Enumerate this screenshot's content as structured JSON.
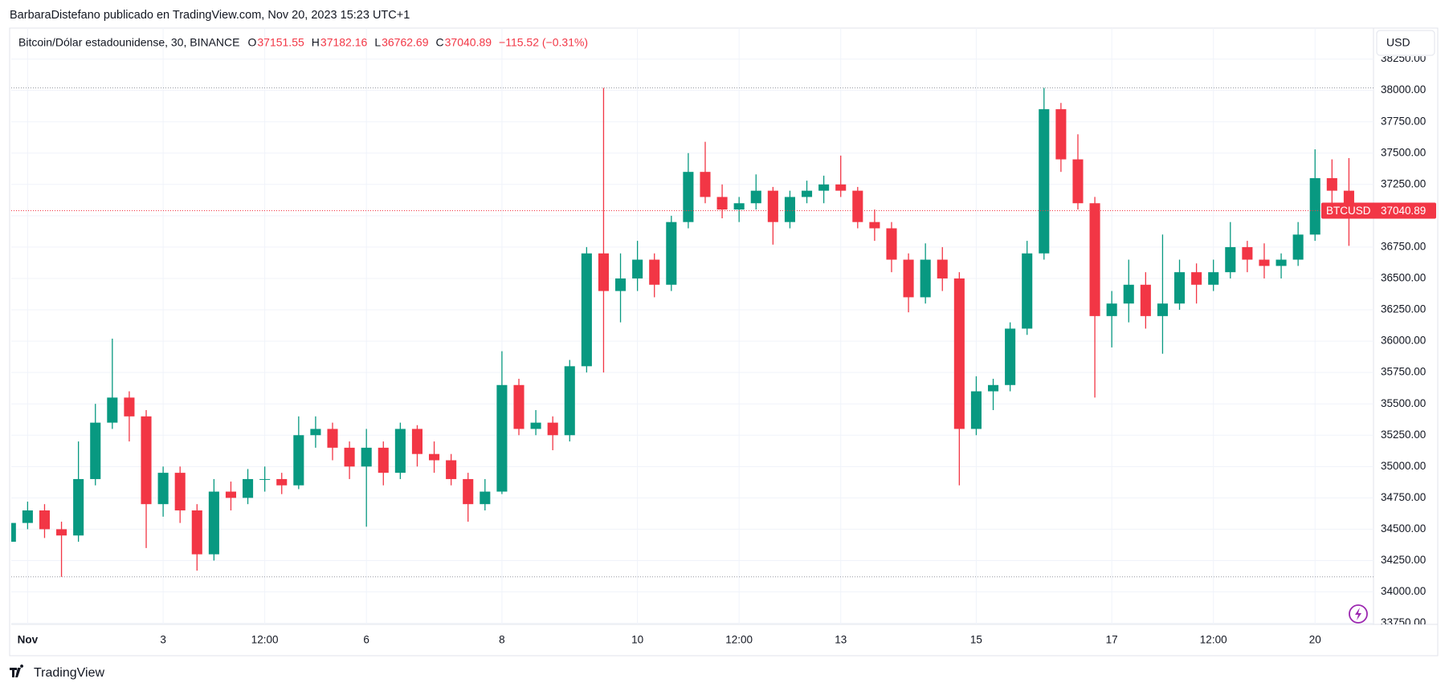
{
  "attribution": "BarbaraDistefano publicado en TradingView.com, Nov 20, 2023 15:23 UTC+1",
  "brand": "TradingView",
  "currency_button": "USD",
  "chart_data": {
    "type": "candlestick",
    "symbol": "Bitcoin/Dólar estadounidense, 30, BINANCE",
    "ohlc_legend": [
      {
        "label": "O",
        "value": 37151.55
      },
      {
        "label": "H",
        "value": 37182.16
      },
      {
        "label": "L",
        "value": 36762.69
      },
      {
        "label": "C",
        "value": 37040.89
      }
    ],
    "change": "−115.52 (−0.31%)",
    "last_price": {
      "name": "BTCUSD",
      "value": 37040.89,
      "color": "#f23645"
    },
    "up_color": "#089981",
    "down_color": "#f23645",
    "grid": true,
    "xlim": [
      -5.8,
      476.7
    ],
    "xticks": [
      {
        "value": 0,
        "label": "Nov"
      },
      {
        "value": 48,
        "label": "3"
      },
      {
        "value": 84,
        "label": "12:00"
      },
      {
        "value": 120,
        "label": "6"
      },
      {
        "value": 168,
        "label": "8"
      },
      {
        "value": 216,
        "label": "10"
      },
      {
        "value": 252,
        "label": "12:00"
      },
      {
        "value": 288,
        "label": "13"
      },
      {
        "value": 336,
        "label": "15"
      },
      {
        "value": 384,
        "label": "17"
      },
      {
        "value": 420,
        "label": "12:00"
      },
      {
        "value": 456,
        "label": "20"
      }
    ],
    "ylim": [
      33741,
      38497
    ],
    "yticks": [
      {
        "value": 33750,
        "label": "33750.00"
      },
      {
        "value": 34000,
        "label": "34000.00"
      },
      {
        "value": 34250,
        "label": "34250.00"
      },
      {
        "value": 34500,
        "label": "34500.00"
      },
      {
        "value": 34750,
        "label": "34750.00"
      },
      {
        "value": 35000,
        "label": "35000.00"
      },
      {
        "value": 35250,
        "label": "35250.00"
      },
      {
        "value": 35500,
        "label": "35500.00"
      },
      {
        "value": 35750,
        "label": "35750.00"
      },
      {
        "value": 36000,
        "label": "36000.00"
      },
      {
        "value": 36250,
        "label": "36250.00"
      },
      {
        "value": 36500,
        "label": "36500.00"
      },
      {
        "value": 36750,
        "label": "36750.00"
      },
      {
        "value": 37000,
        "label": "37000.00"
      },
      {
        "value": 37250,
        "label": "37250.00"
      },
      {
        "value": 37500,
        "label": "37500.00"
      },
      {
        "value": 37750,
        "label": "37750.00"
      },
      {
        "value": 38000,
        "label": "38000.00"
      },
      {
        "value": 38250,
        "label": "38250.00"
      }
    ],
    "x": [
      -6,
      0,
      6,
      12,
      18,
      24,
      30,
      36,
      42,
      48,
      54,
      60,
      66,
      72,
      78,
      84,
      90,
      96,
      102,
      108,
      114,
      120,
      126,
      132,
      138,
      144,
      150,
      156,
      162,
      168,
      174,
      180,
      186,
      192,
      198,
      204,
      210,
      216,
      222,
      228,
      234,
      240,
      246,
      252,
      258,
      264,
      270,
      276,
      282,
      288,
      294,
      300,
      306,
      312,
      318,
      324,
      330,
      336,
      342,
      348,
      354,
      360,
      366,
      372,
      378,
      384,
      390,
      396,
      402,
      408,
      414,
      420,
      426,
      432,
      438,
      444,
      450,
      456,
      462,
      468
    ],
    "open": [
      34400,
      34550,
      34650,
      34500,
      34450,
      34900,
      35350,
      35550,
      35400,
      34700,
      34950,
      34650,
      34300,
      34800,
      34750,
      34900,
      34900,
      34850,
      35250,
      35300,
      35150,
      35000,
      35150,
      34950,
      35300,
      35100,
      35050,
      34900,
      34700,
      34800,
      35650,
      35300,
      35350,
      35250,
      35800,
      36700,
      36400,
      36500,
      36650,
      36450,
      36950,
      37350,
      37150,
      37050,
      37100,
      37200,
      36950,
      37150,
      37200,
      37250,
      37200,
      36950,
      36900,
      36650,
      36350,
      36650,
      36500,
      35300,
      35600,
      35650,
      36100,
      36700,
      37850,
      37450,
      37100,
      36200,
      36300,
      36450,
      36200,
      36300,
      36550,
      36450,
      36550,
      36750,
      36650,
      36600,
      36650,
      36850,
      37300,
      37200
    ],
    "high": [
      34620,
      34720,
      34700,
      34560,
      35200,
      35500,
      36020,
      35600,
      35450,
      35000,
      35000,
      34700,
      34900,
      34880,
      34980,
      35000,
      34950,
      35400,
      35400,
      35350,
      35200,
      35300,
      35200,
      35350,
      35330,
      35200,
      35100,
      34950,
      34900,
      35920,
      35700,
      35450,
      35400,
      35850,
      36750,
      38020,
      36700,
      36800,
      36700,
      37000,
      37500,
      37590,
      37250,
      37150,
      37330,
      37230,
      37200,
      37280,
      37320,
      37480,
      37230,
      37050,
      36950,
      36700,
      36780,
      36750,
      36550,
      35720,
      35700,
      36150,
      36800,
      38020,
      37900,
      37650,
      37150,
      36400,
      36650,
      36550,
      36850,
      36650,
      36620,
      36650,
      36950,
      36800,
      36780,
      36700,
      36950,
      37530,
      37450,
      37460
    ],
    "low": [
      34380,
      34500,
      34430,
      34120,
      34400,
      34850,
      35300,
      35200,
      34350,
      34600,
      34550,
      34170,
      34250,
      34650,
      34700,
      34800,
      34780,
      34820,
      35150,
      35050,
      34900,
      34520,
      34850,
      34900,
      35000,
      34950,
      34850,
      34560,
      34650,
      34780,
      35250,
      35250,
      35130,
      35200,
      35750,
      35750,
      36150,
      36400,
      36350,
      36400,
      36900,
      37100,
      36980,
      36950,
      37050,
      36770,
      36900,
      37100,
      37100,
      37150,
      36900,
      36800,
      36550,
      36230,
      36300,
      36400,
      34850,
      35250,
      35450,
      35600,
      36050,
      36650,
      37350,
      37050,
      35550,
      35950,
      36150,
      36100,
      35900,
      36250,
      36300,
      36400,
      36500,
      36550,
      36500,
      36500,
      36600,
      36800,
      37100,
      36760
    ],
    "close": [
      34550,
      34650,
      34500,
      34450,
      34900,
      35350,
      35550,
      35400,
      34700,
      34950,
      34650,
      34300,
      34800,
      34750,
      34900,
      34900,
      34850,
      35250,
      35300,
      35150,
      35000,
      35150,
      34950,
      35300,
      35100,
      35050,
      34900,
      34700,
      34800,
      35650,
      35300,
      35350,
      35250,
      35800,
      36700,
      36400,
      36500,
      36650,
      36450,
      36950,
      37350,
      37150,
      37050,
      37100,
      37200,
      36950,
      37150,
      37200,
      37250,
      37200,
      36950,
      36900,
      36650,
      36350,
      36650,
      36500,
      35300,
      35600,
      35650,
      36100,
      36700,
      37850,
      37450,
      37100,
      36200,
      36300,
      36450,
      36200,
      36300,
      36550,
      36450,
      36550,
      36750,
      36650,
      36600,
      36650,
      36850,
      37300,
      37200,
      37050
    ]
  }
}
